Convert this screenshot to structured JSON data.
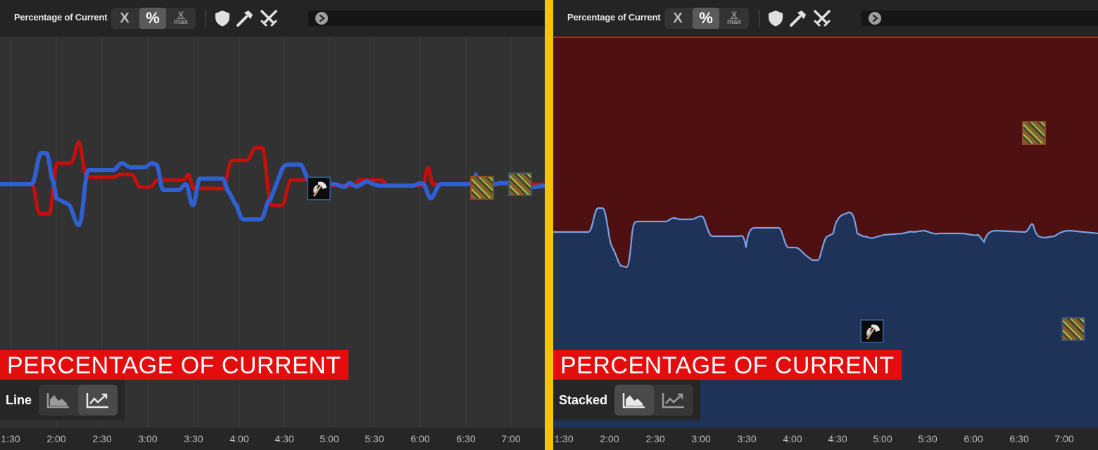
{
  "left": {
    "title": "Percentage of Current",
    "mode_label": "Line",
    "banner": "PERCENTAGE OF CURRENT",
    "segments": {
      "absolute": "X",
      "percent": "%",
      "frac_num": "X",
      "frac_den": "max"
    },
    "ticks": [
      "1:30",
      "2:00",
      "2:30",
      "3:00",
      "3:30",
      "4:00",
      "4:30",
      "5:00",
      "5:30",
      "6:00",
      "6:30",
      "7:00"
    ]
  },
  "right": {
    "title": "Percentage of Current",
    "mode_label": "Stacked",
    "banner": "PERCENTAGE OF CURRENT",
    "segments": {
      "absolute": "X",
      "percent": "%",
      "frac_num": "X",
      "frac_den": "max"
    },
    "ticks": [
      "1:30",
      "2:00",
      "2:30",
      "3:00",
      "3:30",
      "4:00",
      "4:30",
      "5:00",
      "5:30",
      "6:00",
      "6:30",
      "7:00"
    ]
  },
  "icons": {
    "toolbar": [
      "shield-icon",
      "hammer-icon",
      "crossed-swords-icon",
      "play-icon"
    ],
    "mode": [
      "area-chart-icon",
      "line-chart-icon"
    ],
    "markers": [
      "axe-icon",
      "rune-icon"
    ]
  },
  "colors": {
    "red_series": "#c80d0d",
    "blue_series": "#2f5fd0",
    "stack_red": "#4e1010",
    "stack_blue": "#1f3358",
    "blue_line": "#7aa2e6",
    "banner": "#e40d0d",
    "divider": "#f5c400"
  }
}
